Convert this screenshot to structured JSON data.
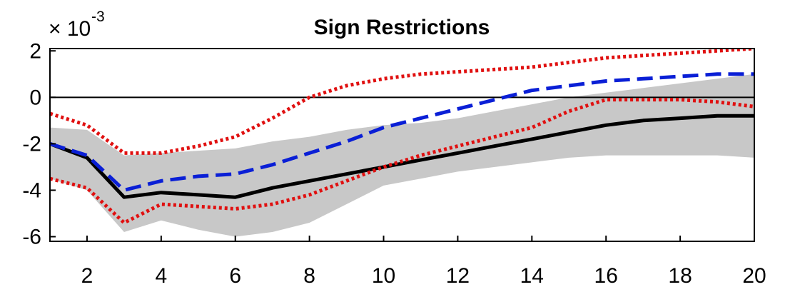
{
  "chart_data": {
    "type": "line",
    "title": "Sign Restrictions",
    "exponent_label_base": "× 10",
    "exponent_label_power": "-3",
    "xlabel": "",
    "ylabel": "",
    "xlim": [
      1,
      20
    ],
    "ylim": [
      -6.2,
      2.1
    ],
    "x_ticks": [
      2,
      4,
      6,
      8,
      10,
      12,
      14,
      16,
      18,
      20
    ],
    "y_ticks": [
      -6,
      -4,
      -2,
      0,
      2
    ],
    "grid": false,
    "legend": "none",
    "x": [
      1,
      2,
      3,
      4,
      5,
      6,
      7,
      8,
      9,
      10,
      11,
      12,
      13,
      14,
      15,
      16,
      17,
      18,
      19,
      20
    ],
    "series": [
      {
        "role": "shaded-band",
        "color": "#c8c8c8",
        "lower": [
          -3.5,
          -4.0,
          -5.8,
          -5.3,
          -5.7,
          -6.0,
          -5.8,
          -5.4,
          -4.6,
          -3.8,
          -3.5,
          -3.2,
          -3.0,
          -2.8,
          -2.6,
          -2.5,
          -2.5,
          -2.5,
          -2.5,
          -2.6
        ],
        "upper": [
          -1.3,
          -1.4,
          -2.5,
          -2.4,
          -2.3,
          -2.2,
          -1.9,
          -1.7,
          -1.4,
          -1.2,
          -1.1,
          -0.9,
          -0.6,
          -0.3,
          0.0,
          0.2,
          0.4,
          0.6,
          0.8,
          1.0
        ]
      },
      {
        "role": "solid-line",
        "color": "#000000",
        "values": [
          -2.0,
          -2.6,
          -4.3,
          -4.1,
          -4.2,
          -4.3,
          -3.9,
          -3.6,
          -3.3,
          -3.0,
          -2.7,
          -2.4,
          -2.1,
          -1.8,
          -1.5,
          -1.2,
          -1.0,
          -0.9,
          -0.8,
          -0.8
        ]
      },
      {
        "role": "dashed-line",
        "color": "#0a1fd6",
        "values": [
          -2.0,
          -2.5,
          -4.0,
          -3.6,
          -3.4,
          -3.3,
          -2.9,
          -2.4,
          -1.9,
          -1.3,
          -0.9,
          -0.5,
          -0.1,
          0.3,
          0.5,
          0.7,
          0.8,
          0.9,
          1.0,
          1.0
        ]
      },
      {
        "role": "dotted-upper",
        "color": "#e01010",
        "values": [
          -0.7,
          -1.2,
          -2.4,
          -2.4,
          -2.1,
          -1.7,
          -0.9,
          0.0,
          0.5,
          0.8,
          1.0,
          1.1,
          1.2,
          1.3,
          1.5,
          1.7,
          1.8,
          1.9,
          2.0,
          2.1
        ]
      },
      {
        "role": "dotted-lower",
        "color": "#e01010",
        "values": [
          -3.5,
          -3.9,
          -5.4,
          -4.6,
          -4.7,
          -4.8,
          -4.6,
          -4.2,
          -3.6,
          -3.0,
          -2.5,
          -2.1,
          -1.7,
          -1.3,
          -0.6,
          -0.1,
          -0.1,
          -0.1,
          -0.2,
          -0.4
        ]
      }
    ]
  }
}
